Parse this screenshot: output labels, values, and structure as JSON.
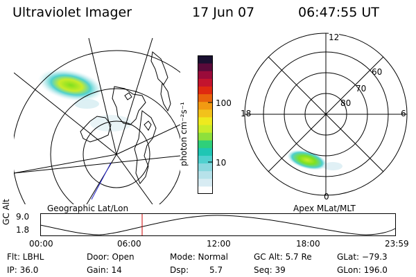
{
  "header": {
    "instrument": "Ultraviolet Imager",
    "date": "17 Jun 07",
    "time": "06:47:55 UT"
  },
  "colorbar": {
    "unit_label": "photon cm⁻²s⁻¹",
    "ticks": [
      "100",
      "10"
    ],
    "colors": [
      "#ffffff",
      "#d8ecf3",
      "#b7e2ea",
      "#8ad8de",
      "#4fd0cf",
      "#1fc6b4",
      "#2fd07a",
      "#8ee03c",
      "#c9ec2a",
      "#eeea1e",
      "#f2c21b",
      "#f29a12",
      "#e8630c",
      "#df2a10",
      "#c3142e",
      "#9a0b3a",
      "#5a0a3a",
      "#1a1030"
    ]
  },
  "left_map": {
    "label": "Geographic Lat/Lon"
  },
  "right_map": {
    "label": "Apex MLat/MLT",
    "mlt_labels": [
      "12",
      "18",
      "6",
      "0"
    ],
    "mlat_labels": [
      "60",
      "70",
      "80"
    ]
  },
  "altitude_plot": {
    "ylabel": "GC Alt",
    "y_ticks": [
      "9.0",
      "1.8"
    ],
    "x_ticks": [
      "00:00",
      "06:00",
      "12:00",
      "18:00",
      "23:59"
    ],
    "marker_time": "06:47:55"
  },
  "status": {
    "filter": "Flt: LBHL",
    "ip": "IP: 36.0",
    "door": "Door: Open",
    "gain": "Gain: 14",
    "mode": "Mode: Normal",
    "dsp_label": "Dsp:",
    "dsp_value": "5.7",
    "gc_alt": "GC Alt: 5.7 Re",
    "seq": "Seq: 39",
    "glat": "GLat: −79.3",
    "glon": "GLon: 196.0"
  }
}
